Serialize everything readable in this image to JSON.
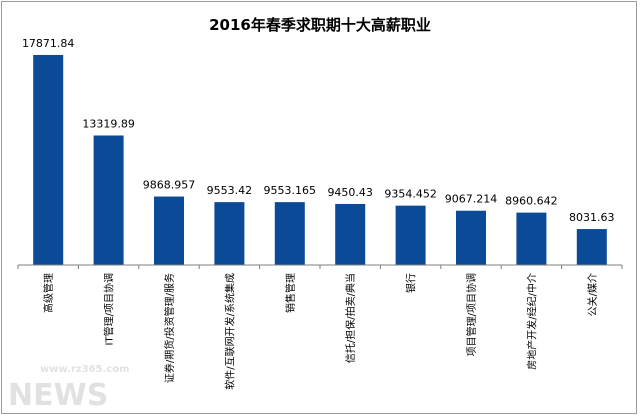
{
  "chart_data": {
    "type": "bar",
    "title": "2016年春季求职期十大高薪职业",
    "categories": [
      "高级管理",
      "IT管理/项目协调",
      "证券/期货/投资管理/服务",
      "软件/互联网开发/系统集成",
      "销售管理",
      "信托/担保/拍卖/典当",
      "银行",
      "项目管理/项目协调",
      "房地产开发/经纪/中介",
      "公关/媒介"
    ],
    "values": [
      17871.84,
      13319.89,
      9868.957,
      9553.42,
      9553.165,
      9450.43,
      9354.452,
      9067.214,
      8960.642,
      8031.63
    ],
    "value_labels": [
      "17871.84",
      "13319.89",
      "9868.957",
      "9553.42",
      "9553.165",
      "9450.43",
      "9354.452",
      "9067.214",
      "8960.642",
      "8031.63"
    ],
    "ylim": [
      6000,
      19000
    ],
    "bar_color": "#0b4a96",
    "grid": false,
    "legend": "none"
  },
  "watermark": {
    "text": "NEWS",
    "small_text": "www.rz365.com"
  }
}
